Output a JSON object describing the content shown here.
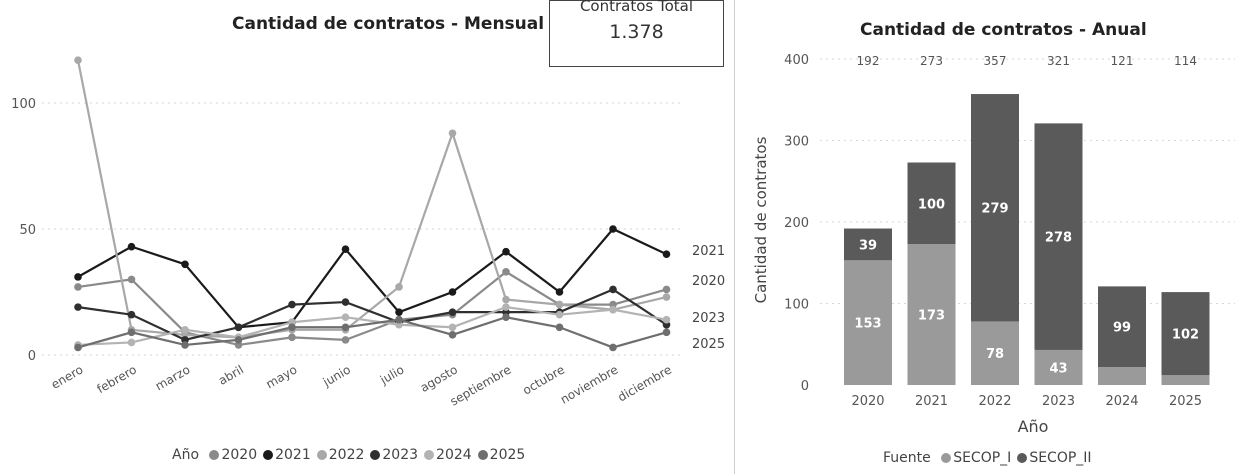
{
  "kpi": {
    "label": "Contratos Total",
    "value": "1.378"
  },
  "chart_data": [
    {
      "type": "line",
      "title": "Cantidad de contratos - Mensual",
      "xlabel": "",
      "ylabel": "",
      "ylim": [
        0,
        120
      ],
      "yticks": [
        0,
        50,
        100
      ],
      "categories": [
        "enero",
        "febrero",
        "marzo",
        "abril",
        "mayo",
        "junio",
        "julio",
        "agosto",
        "septiembre",
        "octubre",
        "noviembre",
        "diciembre"
      ],
      "legend_title": "Año",
      "legend_position": "bottom",
      "end_labels": [
        "2021",
        "2020",
        "2023",
        "2025"
      ],
      "grid": true,
      "series": [
        {
          "name": "2020",
          "color": "#8a8a8a",
          "values": [
            27,
            30,
            9,
            4,
            7,
            6,
            14,
            16,
            33,
            20,
            20,
            26
          ]
        },
        {
          "name": "2021",
          "color": "#1a1a1a",
          "values": [
            31,
            43,
            36,
            11,
            13,
            42,
            17,
            25,
            41,
            25,
            50,
            40
          ]
        },
        {
          "name": "2022",
          "color": "#a8a8a8",
          "values": [
            117,
            10,
            8,
            7,
            10,
            10,
            27,
            88,
            22,
            20,
            18,
            23
          ]
        },
        {
          "name": "2023",
          "color": "#2f2f2f",
          "values": [
            19,
            16,
            6,
            11,
            20,
            21,
            13,
            17,
            17,
            17,
            26,
            12
          ]
        },
        {
          "name": "2024",
          "color": "#b3b3b3",
          "values": [
            4,
            5,
            10,
            7,
            13,
            15,
            12,
            11,
            19,
            16,
            18,
            14
          ]
        },
        {
          "name": "2025",
          "color": "#6e6e6e",
          "values": [
            3,
            9,
            4,
            6,
            11,
            11,
            14,
            8,
            15,
            11,
            3,
            9
          ]
        }
      ]
    },
    {
      "type": "bar",
      "stacked": true,
      "title": "Cantidad de contratos - Anual",
      "xlabel": "Año",
      "ylabel": "Cantidad de contratos",
      "ylim": [
        0,
        400
      ],
      "yticks": [
        0,
        100,
        200,
        300,
        400
      ],
      "categories": [
        "2020",
        "2021",
        "2022",
        "2023",
        "2024",
        "2025"
      ],
      "totals": [
        192,
        273,
        357,
        321,
        121,
        114
      ],
      "legend_title": "Fuente",
      "legend_position": "bottom",
      "grid": true,
      "series": [
        {
          "name": "SECOP_I",
          "color": "#9a9a9a",
          "values": [
            153,
            173,
            78,
            43,
            22,
            12
          ],
          "labels": [
            "153",
            "173",
            "78",
            "43",
            "",
            ""
          ]
        },
        {
          "name": "SECOP_II",
          "color": "#5a5a5a",
          "values": [
            39,
            100,
            279,
            278,
            99,
            102
          ],
          "labels": [
            "39",
            "100",
            "279",
            "278",
            "99",
            "102"
          ]
        }
      ]
    }
  ]
}
